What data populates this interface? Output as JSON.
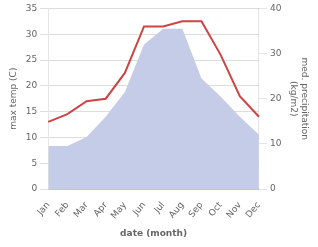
{
  "chart_data": {
    "type": "line",
    "xlabel": "date (month)",
    "ylabel": "max temp (C)",
    "y2label": "med. precipitation\n(kg/m2)",
    "categories": [
      "Jan",
      "Feb",
      "Mar",
      "Apr",
      "May",
      "Jun",
      "Jul",
      "Aug",
      "Sep",
      "Oct",
      "Nov",
      "Dec"
    ],
    "series": [
      {
        "type": "line",
        "color": "#cc4444",
        "values": [
          13.0,
          14.5,
          17.0,
          17.5,
          22.5,
          31.5,
          31.5,
          32.5,
          32.5,
          26.0,
          18.0,
          14.0
        ]
      },
      {
        "type": "area",
        "color": "#c5cce8",
        "axis": "y2",
        "values": [
          9.5,
          9.5,
          11.5,
          16.0,
          21.5,
          32.0,
          35.5,
          35.5,
          24.5,
          20.5,
          16.0,
          12.0
        ]
      }
    ],
    "ylim": [
      0,
      35
    ],
    "yticks": [
      0,
      5,
      10,
      15,
      20,
      25,
      30,
      35
    ],
    "y2lim": [
      0,
      40
    ],
    "y2ticks": [
      0,
      10,
      20,
      30,
      40
    ],
    "grid": true
  }
}
